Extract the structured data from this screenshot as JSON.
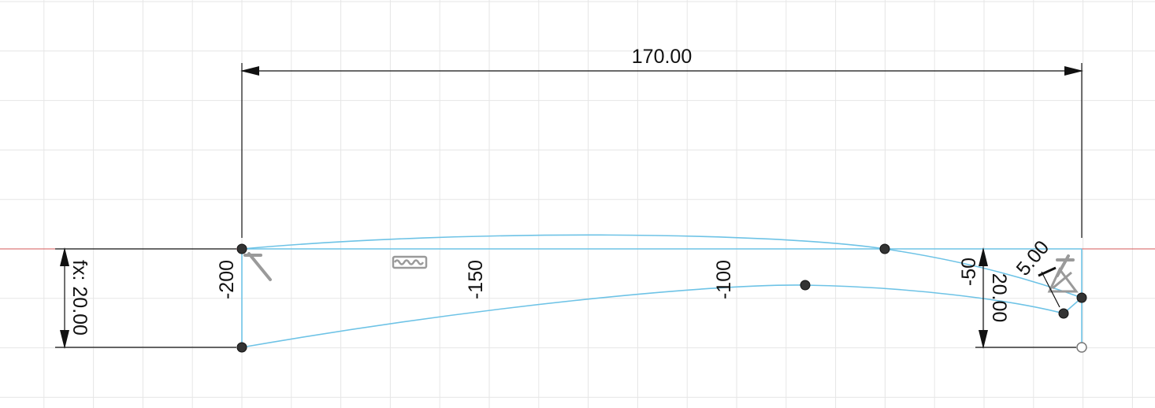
{
  "colors": {
    "grid": "#e6e6e6",
    "sketch": "#6ec3e6",
    "dimension": "#111111",
    "x_axis": "#d45a5a",
    "point": "#333333",
    "glyph": "#9a9a9a"
  },
  "dimensions": {
    "width_value": "170.00",
    "left_height_value": "fx: 20.00",
    "right_height_value": "20.00",
    "fillet_value": "5.00"
  },
  "axis_ticks": [
    "-200",
    "-150",
    "-100",
    "-50"
  ],
  "constraint_icons": [
    "fix-constraint-icon",
    "curvature-constraint-icon",
    "fix-constraint-icon",
    "tangent-constraint-icon"
  ]
}
